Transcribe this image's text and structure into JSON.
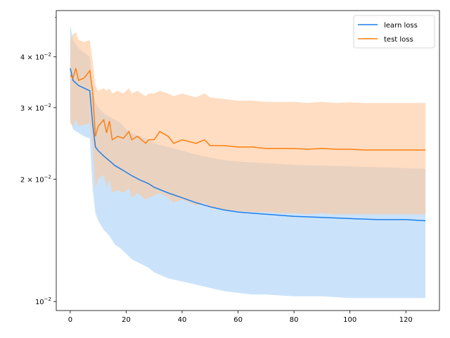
{
  "chart_data": {
    "type": "line",
    "title": "",
    "xlabel": "",
    "ylabel": "",
    "xlim": [
      -5,
      132
    ],
    "ylim": [
      0.0095,
      0.052
    ],
    "yscale": "log",
    "grid": false,
    "legend_position": "top-right",
    "x_ticks": [
      "0",
      "20",
      "40",
      "60",
      "80",
      "100",
      "120"
    ],
    "x_tick_values": [
      0,
      20,
      40,
      60,
      80,
      100,
      120
    ],
    "y_ticks": [
      "10^{-2}",
      "2 × 10^{-2}",
      "3 × 10^{-2}",
      "4 × 10^{-2}"
    ],
    "y_tick_values": [
      0.01,
      0.02,
      0.03,
      0.04
    ],
    "y_tick_labels": [
      {
        "base": "10",
        "coef": "",
        "exp": "−2"
      },
      {
        "base": "10",
        "coef": "2 × ",
        "exp": "−2"
      },
      {
        "base": "10",
        "coef": "3 × ",
        "exp": "−2"
      },
      {
        "base": "10",
        "coef": "4 × ",
        "exp": "−2"
      }
    ],
    "series": [
      {
        "name": "learn loss",
        "color": "#1f7fe8",
        "band_color": "#a9d1f7",
        "x": [
          0,
          1,
          3,
          5,
          7,
          8,
          9,
          10,
          12,
          14,
          16,
          18,
          20,
          22,
          25,
          28,
          30,
          35,
          40,
          45,
          50,
          55,
          60,
          65,
          70,
          80,
          90,
          100,
          110,
          120,
          127
        ],
        "mean": [
          0.0375,
          0.035,
          0.034,
          0.0335,
          0.033,
          0.0275,
          0.024,
          0.0235,
          0.0228,
          0.0222,
          0.0216,
          0.0212,
          0.0208,
          0.0204,
          0.0199,
          0.0195,
          0.0191,
          0.0185,
          0.018,
          0.0175,
          0.0171,
          0.0168,
          0.0166,
          0.0165,
          0.0164,
          0.0162,
          0.0161,
          0.016,
          0.0159,
          0.0159,
          0.0158
        ],
        "upper": [
          0.048,
          0.044,
          0.042,
          0.041,
          0.04,
          0.033,
          0.031,
          0.03,
          0.029,
          0.0285,
          0.028,
          0.0275,
          0.0265,
          0.026,
          0.0255,
          0.025,
          0.0245,
          0.024,
          0.0235,
          0.023,
          0.0226,
          0.0223,
          0.0221,
          0.022,
          0.0219,
          0.0217,
          0.0216,
          0.0215,
          0.0214,
          0.0213,
          0.0212
        ],
        "lower": [
          0.028,
          0.0265,
          0.026,
          0.0255,
          0.0252,
          0.019,
          0.0165,
          0.0158,
          0.015,
          0.0145,
          0.0138,
          0.0135,
          0.0131,
          0.0127,
          0.0124,
          0.0121,
          0.0118,
          0.0114,
          0.0112,
          0.011,
          0.0108,
          0.0106,
          0.0105,
          0.0104,
          0.0104,
          0.0103,
          0.0103,
          0.0102,
          0.0102,
          0.0102,
          0.0102
        ]
      },
      {
        "name": "test loss",
        "color": "#ff7f0e",
        "band_color": "#ffc79a",
        "x": [
          0,
          1,
          2,
          3,
          5,
          7,
          8,
          9,
          10,
          12,
          13,
          14,
          15,
          17,
          19,
          21,
          22,
          24,
          27,
          28,
          30,
          32,
          35,
          37,
          40,
          42,
          45,
          48,
          50,
          55,
          60,
          65,
          70,
          75,
          80,
          85,
          90,
          95,
          100,
          105,
          110,
          115,
          120,
          125,
          127
        ],
        "mean": [
          0.036,
          0.0355,
          0.0375,
          0.035,
          0.0355,
          0.037,
          0.033,
          0.0255,
          0.027,
          0.028,
          0.026,
          0.0278,
          0.025,
          0.0255,
          0.0252,
          0.0262,
          0.025,
          0.0255,
          0.0245,
          0.025,
          0.025,
          0.0262,
          0.0255,
          0.0245,
          0.025,
          0.0248,
          0.0245,
          0.025,
          0.0242,
          0.0242,
          0.024,
          0.024,
          0.0238,
          0.0238,
          0.0238,
          0.0237,
          0.0238,
          0.0237,
          0.0237,
          0.0236,
          0.0236,
          0.0236,
          0.0236,
          0.0236,
          0.0236
        ],
        "upper": [
          0.044,
          0.0455,
          0.046,
          0.044,
          0.0435,
          0.044,
          0.039,
          0.034,
          0.033,
          0.0335,
          0.033,
          0.0335,
          0.0325,
          0.033,
          0.0325,
          0.0335,
          0.0325,
          0.033,
          0.032,
          0.0325,
          0.0325,
          0.033,
          0.0325,
          0.032,
          0.0325,
          0.0322,
          0.0318,
          0.0325,
          0.0318,
          0.0315,
          0.0312,
          0.0312,
          0.031,
          0.031,
          0.031,
          0.0308,
          0.031,
          0.0308,
          0.0309,
          0.0308,
          0.0308,
          0.0308,
          0.0308,
          0.0308,
          0.0308
        ],
        "lower": [
          0.0275,
          0.027,
          0.028,
          0.027,
          0.0272,
          0.0275,
          0.024,
          0.019,
          0.02,
          0.0205,
          0.019,
          0.02,
          0.0185,
          0.0188,
          0.0185,
          0.019,
          0.018,
          0.0185,
          0.0178,
          0.018,
          0.0182,
          0.0185,
          0.018,
          0.0175,
          0.0178,
          0.0176,
          0.0172,
          0.0175,
          0.017,
          0.0168,
          0.0167,
          0.0166,
          0.0166,
          0.0165,
          0.0165,
          0.0164,
          0.0165,
          0.0164,
          0.0164,
          0.0164,
          0.0164,
          0.0164,
          0.0164,
          0.0164,
          0.0164
        ]
      }
    ]
  }
}
